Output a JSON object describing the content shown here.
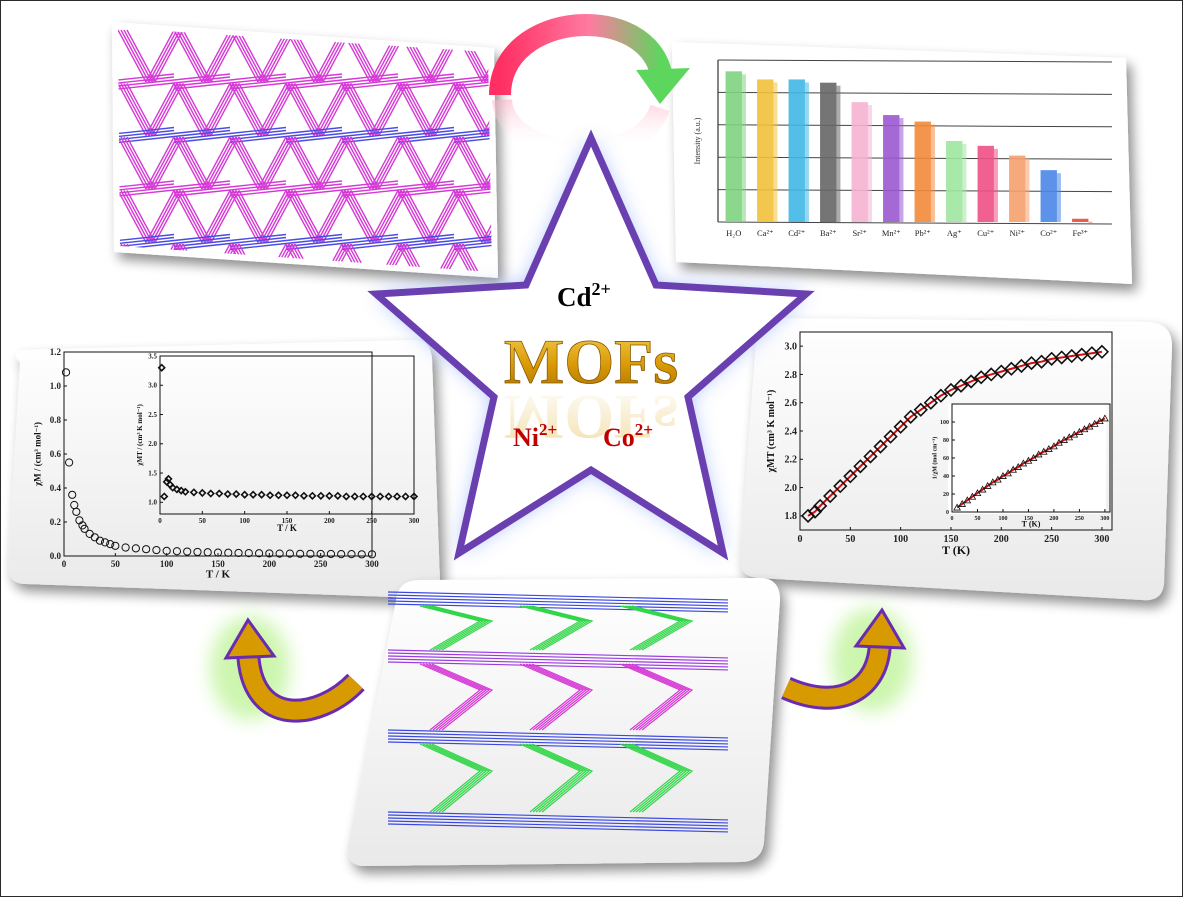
{
  "center": {
    "ions": {
      "top": "Cd2+",
      "left": "Ni2+",
      "right": "Co2+"
    },
    "ion_parts": {
      "cd_base": "Cd",
      "cd_sup": "2+",
      "ni_base": "Ni",
      "ni_sup": "2+",
      "co_base": "Co",
      "co_sup": "2+"
    },
    "title": "MOFs",
    "colors": {
      "star_stroke": "#6a3fb0",
      "star_fill": "#ffffff",
      "glow": "#9fb8ff",
      "title_gold": "#d9a20a",
      "cd_color": "#000000",
      "ni_color": "#c00000",
      "co_color": "#c00000"
    }
  },
  "arrows": {
    "top": {
      "from": "network-pink",
      "to": "bar-chart",
      "colors": [
        "#ff3c6e",
        "#7be07b"
      ]
    },
    "left": {
      "from": "network-green",
      "to": "magnetic-chart-left",
      "color": "#d79a00",
      "outline": "#6a2bb0"
    },
    "right": {
      "from": "network-green",
      "to": "magnetic-chart-right",
      "color": "#d79a00",
      "outline": "#6a2bb0"
    }
  },
  "bar_chart": {
    "chart_data": {
      "type": "bar",
      "categories": [
        "H2O",
        "Ca2+",
        "Cd2+",
        "Ba2+",
        "Sr2+",
        "Mn2+",
        "Pb2+",
        "Ag+",
        "Cu2+",
        "Ni2+",
        "Co2+",
        "Fe3+"
      ],
      "category_labels": [
        "H₂O",
        "Ca²⁺",
        "Cd²⁺",
        "Ba²⁺",
        "Sr²⁺",
        "Mn²⁺",
        "Pb²⁺",
        "Ag⁺",
        "Cu²⁺",
        "Ni²⁺",
        "Co²⁺",
        "Fe³⁺"
      ],
      "values": [
        0.93,
        0.88,
        0.88,
        0.86,
        0.74,
        0.66,
        0.62,
        0.5,
        0.47,
        0.41,
        0.32,
        0.02
      ],
      "colors": [
        "#7ed37e",
        "#f2c13a",
        "#40b7e6",
        "#666666",
        "#f6b3d1",
        "#9b59d0",
        "#f28a3a",
        "#9ee69e",
        "#ee4f84",
        "#f5a06b",
        "#4a86e8",
        "#e84b3a"
      ],
      "ylabel": "Intensity (a.u.)",
      "ylim": [
        0,
        1
      ]
    }
  },
  "chart_left": {
    "chart_data": {
      "type": "scatter",
      "xlabel": "T / K",
      "ylabel": "χM / (cm³ mol⁻¹)",
      "xlim": [
        0,
        300
      ],
      "ylim": [
        0,
        1.2
      ],
      "xticks": [
        "0",
        "50",
        "100",
        "150",
        "200",
        "250",
        "300"
      ],
      "yticks": [
        "0.0",
        "0.2",
        "0.4",
        "0.6",
        "0.8",
        "1.0",
        "1.2"
      ],
      "x": [
        2,
        5,
        8,
        10,
        12,
        15,
        18,
        20,
        25,
        30,
        35,
        40,
        45,
        50,
        60,
        70,
        80,
        90,
        100,
        110,
        120,
        130,
        140,
        150,
        160,
        170,
        180,
        190,
        200,
        210,
        220,
        230,
        240,
        250,
        260,
        270,
        280,
        290,
        300
      ],
      "y": [
        1.08,
        0.55,
        0.36,
        0.3,
        0.26,
        0.21,
        0.18,
        0.16,
        0.13,
        0.11,
        0.09,
        0.08,
        0.07,
        0.06,
        0.05,
        0.045,
        0.04,
        0.035,
        0.03,
        0.028,
        0.026,
        0.024,
        0.022,
        0.02,
        0.019,
        0.018,
        0.017,
        0.016,
        0.015,
        0.014,
        0.014,
        0.013,
        0.013,
        0.012,
        0.012,
        0.011,
        0.011,
        0.01,
        0.01
      ],
      "inset": {
        "xlabel": "T / K",
        "ylabel": "χMT / (cm³ K mol⁻¹)",
        "xlim": [
          0,
          300
        ],
        "ylim": [
          0.8,
          3.5
        ],
        "xticks": [
          "0",
          "50",
          "100",
          "150",
          "200",
          "250",
          "300"
        ],
        "yticks": [
          "1.0",
          "1.5",
          "2.0",
          "2.5",
          "3.0",
          "3.5"
        ],
        "x": [
          2,
          5,
          8,
          10,
          12,
          15,
          20,
          25,
          30,
          40,
          50,
          60,
          70,
          80,
          90,
          100,
          110,
          120,
          130,
          140,
          150,
          160,
          170,
          180,
          190,
          200,
          210,
          220,
          230,
          240,
          250,
          260,
          270,
          280,
          290,
          300
        ],
        "y": [
          3.3,
          1.1,
          1.35,
          1.4,
          1.3,
          1.25,
          1.22,
          1.2,
          1.18,
          1.17,
          1.16,
          1.15,
          1.15,
          1.14,
          1.14,
          1.13,
          1.13,
          1.13,
          1.12,
          1.12,
          1.12,
          1.12,
          1.11,
          1.11,
          1.11,
          1.11,
          1.11,
          1.1,
          1.1,
          1.1,
          1.1,
          1.1,
          1.1,
          1.1,
          1.1,
          1.1
        ]
      }
    }
  },
  "chart_right": {
    "chart_data": {
      "type": "scatter",
      "xlabel": "T (K)",
      "ylabel": "χMT (cm³ K mol⁻¹)",
      "xlim": [
        0,
        310
      ],
      "ylim": [
        1.7,
        3.1
      ],
      "xticks": [
        "0",
        "50",
        "100",
        "150",
        "200",
        "250",
        "300"
      ],
      "yticks": [
        "1.8",
        "2.0",
        "2.2",
        "2.4",
        "2.6",
        "2.8",
        "3.0"
      ],
      "x": [
        8,
        15,
        20,
        30,
        40,
        50,
        60,
        70,
        80,
        90,
        100,
        110,
        120,
        130,
        140,
        150,
        160,
        170,
        180,
        190,
        200,
        210,
        220,
        230,
        240,
        250,
        260,
        270,
        280,
        290,
        300
      ],
      "y": [
        1.8,
        1.83,
        1.87,
        1.94,
        2.01,
        2.08,
        2.15,
        2.22,
        2.29,
        2.36,
        2.43,
        2.5,
        2.55,
        2.6,
        2.65,
        2.69,
        2.72,
        2.75,
        2.78,
        2.8,
        2.82,
        2.84,
        2.86,
        2.88,
        2.89,
        2.91,
        2.92,
        2.93,
        2.94,
        2.95,
        2.96
      ],
      "fit_color": "#d01010",
      "inset": {
        "xlabel": "T (K)",
        "ylabel": "1/χM (mol cm⁻³)",
        "xlim": [
          0,
          310
        ],
        "ylim": [
          0,
          120
        ],
        "xticks": [
          "0",
          "50",
          "100",
          "150",
          "200",
          "250",
          "300"
        ],
        "yticks": [
          "0",
          "20",
          "40",
          "60",
          "80",
          "100"
        ],
        "x": [
          10,
          20,
          30,
          40,
          50,
          60,
          70,
          80,
          90,
          100,
          110,
          120,
          130,
          140,
          150,
          160,
          170,
          180,
          190,
          200,
          210,
          220,
          230,
          240,
          250,
          260,
          270,
          280,
          290,
          300
        ],
        "y": [
          5,
          9,
          13,
          17,
          21,
          25,
          29,
          33,
          36,
          40,
          43,
          47,
          50,
          54,
          57,
          60,
          64,
          67,
          70,
          73,
          77,
          80,
          83,
          86,
          89,
          92,
          95,
          98,
          101,
          104
        ]
      }
    }
  }
}
